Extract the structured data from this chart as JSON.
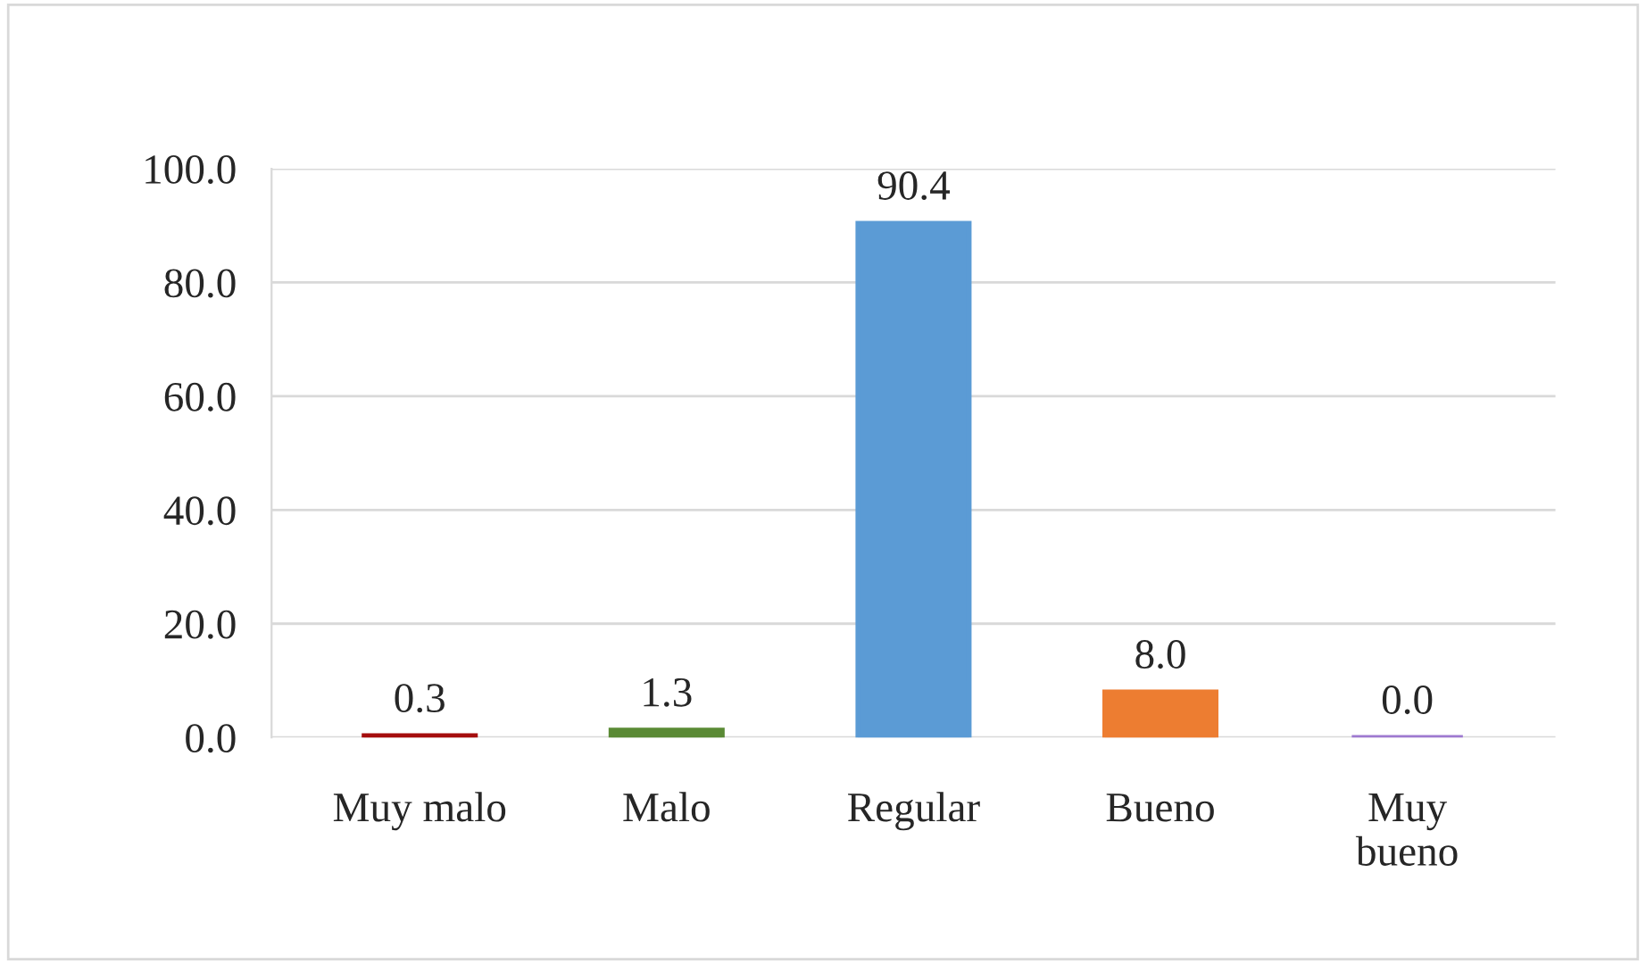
{
  "chart_data": {
    "type": "bar",
    "categories": [
      "Muy malo",
      "Malo",
      "Regular",
      "Bueno",
      "Muy\nbueno"
    ],
    "values": [
      0.3,
      1.3,
      90.4,
      8.0,
      0.0
    ],
    "colors": [
      "#a50d0d",
      "#5a8a35",
      "#5b9bd5",
      "#ed7d31",
      "#9e7ad0"
    ],
    "value_labels": [
      "0.3",
      "1.3",
      "90.4",
      "8.0",
      "0.0"
    ],
    "ylim": [
      0,
      100
    ],
    "yticks": [
      {
        "value": 0,
        "label": "0.0"
      },
      {
        "value": 20,
        "label": "20.0"
      },
      {
        "value": 40,
        "label": "40.0"
      },
      {
        "value": 60,
        "label": "60.0"
      },
      {
        "value": 80,
        "label": "80.0"
      },
      {
        "value": 100,
        "label": "100.0"
      }
    ],
    "grid": "y"
  }
}
